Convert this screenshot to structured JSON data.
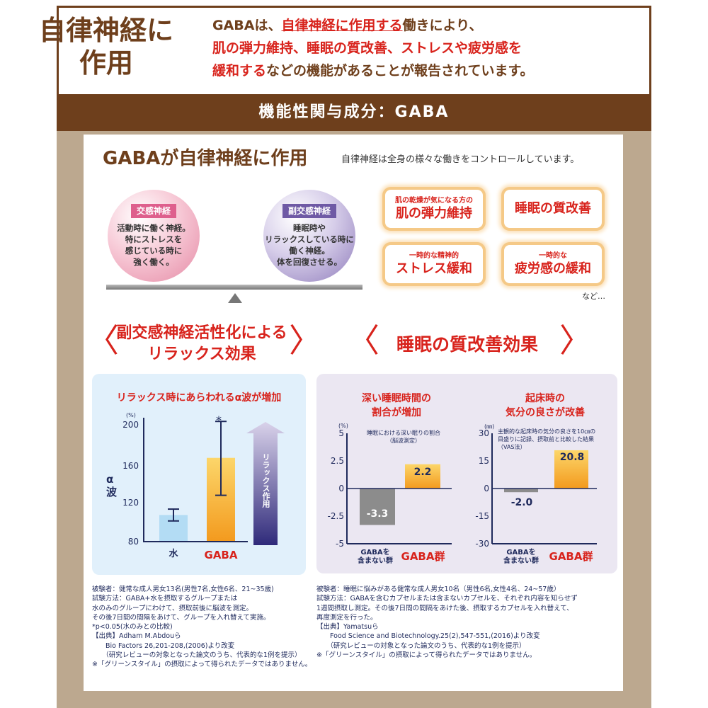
{
  "header": {
    "title_line1": "自律神経に",
    "title_line2": "作用",
    "text_l1_a": "GABAは、",
    "text_l1_b": "自律神経に作用する",
    "text_l1_c": "働きにより、",
    "text_l2": "肌の弾力維持、睡眠の質改善、ストレスや疲労感を",
    "text_l3_a": "緩和する",
    "text_l3_b": "などの機能があることが報告されています。"
  },
  "band": "機能性関与成分：GABA",
  "section": {
    "title": "GABAが自律神経に作用",
    "subtitle": "自律神経は全身の様々な働きをコントロールしています。"
  },
  "balance": {
    "left": {
      "tag": "交感神経",
      "text": [
        "活動時に働く神経。",
        "特にストレスを",
        "感じている時に",
        "強く働く。"
      ]
    },
    "right": {
      "tag": "副交感神経",
      "text": [
        "睡眠時や",
        "リラックスしている時に",
        "働く神経。",
        "体を回復させる。"
      ]
    }
  },
  "effects": [
    {
      "small": "肌の乾燥が気になる方の",
      "large": "肌の弾力維持"
    },
    {
      "small": "",
      "large": "睡眠の質改善"
    },
    {
      "small": "一時的な精神的",
      "large": "ストレス緩和"
    },
    {
      "small": "一時的な",
      "large": "疲労感の緩和"
    }
  ],
  "effects_more": "など…",
  "headings": {
    "left_l1": "副交感神経活性化による",
    "left_l2": "リラックス効果",
    "right": "睡眠の質改善効果",
    "bracket_open": "〈",
    "bracket_close": "〉"
  },
  "colors": {
    "brown": "#6e3f1c",
    "red": "#d8231c",
    "navy": "#1f2a5c",
    "tan": "#bca88f",
    "water_bar": "#b3dcf4",
    "gaba_bar": "#f39a1e",
    "control_bar": "#8c8c8c"
  },
  "chart_data": [
    {
      "type": "bar",
      "title": "リラックス時にあらわれるα波が増加",
      "ylabel": "α波",
      "yunit": "(%)",
      "ylim": [
        80,
        200
      ],
      "yticks": [
        "200",
        "160",
        "120",
        "80"
      ],
      "categories": [
        "水",
        "GABA"
      ],
      "values": [
        107,
        165
      ],
      "error_low": [
        101,
        127
      ],
      "error_high": [
        113,
        202
      ],
      "significance": [
        "",
        "*"
      ],
      "arrow_label": "リラックス作用"
    },
    {
      "type": "bar",
      "title_l1": "深い睡眠時間の",
      "title_l2": "割合が増加",
      "note_l1": "睡眠における深い眠りの割合",
      "note_l2": "（脳波測定）",
      "yunit": "(%)",
      "ylim": [
        -5,
        5
      ],
      "yticks": [
        "5",
        "2.5",
        "0",
        "-2.5",
        "-5"
      ],
      "categories": [
        "GABAを含まない群",
        "GABA群"
      ],
      "category_l1": "GABAを",
      "category_l2": "含まない群",
      "values": [
        -3.3,
        2.2
      ],
      "data_labels": [
        "-3.3",
        "2.2"
      ]
    },
    {
      "type": "bar",
      "title_l1": "起床時の",
      "title_l2": "気分の良さが改善",
      "note_l1": "主観的な起床時の気分の良さを10㎝の",
      "note_l2": "目盛りに記録、摂取前と比較した結果",
      "note_l3": "（VAS法）",
      "yunit": "(㎜)",
      "ylim": [
        -30,
        30
      ],
      "yticks": [
        "30",
        "15",
        "0",
        "-15",
        "-30"
      ],
      "categories": [
        "GABAを含まない群",
        "GABA群"
      ],
      "category_l1": "GABAを",
      "category_l2": "含まない群",
      "values": [
        -2.0,
        20.8
      ],
      "data_labels": [
        "-2.0",
        "20.8"
      ]
    }
  ],
  "footnotes": {
    "left": "被験者：健常な成人男女13名(男性7名,女性6名、21~35歳)\n試験方法：GABA+水を摂取するグループまたは\n水のみのグループにわけて、摂取前後に脳波を測定。\nその後7日間の間隔をあけて、グループを入れ替えて実施。\n*p<0.05(水のみとの比較)\n【出典】Adham M.Abdouら\n　　Bio Factors 26,201-208,(2006)より改変\n　　（研究レビューの対象となった論文のうち、代表的な1例を提示）\n※「グリーンスタイル」の摂取によって得られたデータではありません。",
    "right": "被験者：睡眠に悩みがある健常な成人男女10名（男性6名,女性4名、24~57歳）\n試験方法：GABAを含むカプセルまたは含まないカプセルを、それぞれ内容を知らせず\n1週間摂取し測定。その後7日間の間隔をあけた後、摂取するカプセルを入れ替えて、\n再度測定を行った。\n【出典】Yamatsuら\n　　Food Science and Biotechnology.25(2),547-551,(2016)より改変\n　　（研究レビューの対象となった論文のうち、代表的な1例を提示）\n※「グリーンスタイル」の摂取によって得られたデータではありません。"
  }
}
